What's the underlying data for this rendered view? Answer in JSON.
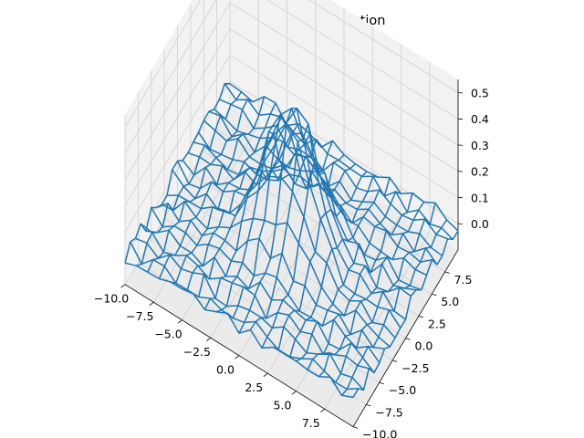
{
  "chart_data": {
    "type": "wireframe",
    "title": "Modelling Gaussian function",
    "xlabel": "",
    "ylabel": "",
    "zlabel": "",
    "x_range": [
      -10,
      10
    ],
    "y_range": [
      -10,
      10
    ],
    "zlim": [
      -0.1,
      0.55
    ],
    "grid_points": 21,
    "x_ticks": [
      -10.0,
      -7.5,
      -5.0,
      -2.5,
      0.0,
      2.5,
      5.0,
      7.5
    ],
    "x_tick_labels": [
      "−10.0",
      "−7.5",
      "−5.0",
      "−2.5",
      "0.0",
      "2.5",
      "5.0",
      "7.5"
    ],
    "y_ticks": [
      -10.0,
      -7.5,
      -5.0,
      -2.5,
      0.0,
      2.5,
      5.0,
      7.5
    ],
    "y_tick_labels": [
      "−10.0",
      "−7.5",
      "−5.0",
      "−2.5",
      "0.0",
      "2.5",
      "5.0",
      "7.5"
    ],
    "z_ticks": [
      0.0,
      0.1,
      0.2,
      0.3,
      0.4,
      0.5
    ],
    "z_tick_labels": [
      "0.0",
      "0.1",
      "0.2",
      "0.3",
      "0.4",
      "0.5"
    ],
    "surface": {
      "peak_height": 0.5,
      "peak_center": [
        0,
        0
      ],
      "sigma": 2.2,
      "noise_amplitude": 0.035
    },
    "grid": true,
    "colors": {
      "wire": "#1f77b4",
      "pane_floor": "#ebebeb",
      "pane_back": "#f2f2f2",
      "pane_side": "#f2f2f2",
      "gridline": "#d0d0d0"
    }
  }
}
